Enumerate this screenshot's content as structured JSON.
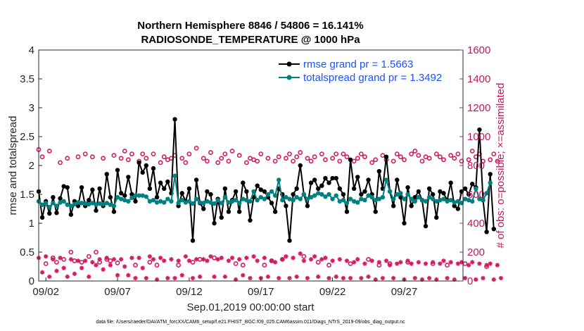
{
  "chart_data": {
    "type": "line",
    "title": "Northern Hemisphere 8846 / 54806 = 16.141%",
    "subtitle": "RADIOSONDE_TEMPERATURE @ 1000 hPa",
    "xlabel": "Sep.01,2019 00:00:00 start",
    "ylabel": "rmse and totalspread",
    "y2label": "# of obs: o=possible; ×=assimilated",
    "footer": "data file: /Users/raeder/DAI/ATM_forcXX/CAM6_setup/f.e21.FHIST_BGC.f09_025.CAM6assim.011/Diags_NTrS_2019-09/obs_diag_output.nc",
    "ylim": [
      0,
      4
    ],
    "y2lim": [
      0,
      1600
    ],
    "xlim": [
      1.5,
      31.1
    ],
    "yticks": [
      "0",
      "0.5",
      "1",
      "1.5",
      "2",
      "2.5",
      "3",
      "3.5",
      "4"
    ],
    "y2ticks": [
      "0",
      "200",
      "400",
      "600",
      "800",
      "1000",
      "1200",
      "1400",
      "1600"
    ],
    "xticks": [
      {
        "value": 2,
        "label": "09/02"
      },
      {
        "value": 7,
        "label": "09/07"
      },
      {
        "value": 12,
        "label": "09/12"
      },
      {
        "value": 17,
        "label": "09/17"
      },
      {
        "value": 22,
        "label": "09/22"
      },
      {
        "value": 27,
        "label": "09/27"
      }
    ],
    "legend_position": "top-right",
    "grid": false,
    "x_start": 1.5,
    "x_step": 0.25,
    "series": [
      {
        "name": "rmse grand pr = 1.5663",
        "color": "#000000",
        "marker": "filled-circle",
        "values": [
          1.55,
          1.1,
          1.38,
          1.17,
          1.45,
          1.18,
          1.43,
          1.64,
          1.62,
          1.15,
          1.38,
          1.3,
          1.62,
          1.3,
          1.4,
          1.58,
          1.22,
          1.6,
          1.3,
          1.85,
          1.45,
          1.2,
          1.92,
          1.52,
          1.48,
          1.8,
          1.5,
          1.38,
          2.05,
          1.88,
          2.0,
          1.6,
          1.95,
          1.45,
          1.7,
          1.6,
          1.72,
          1.52,
          2.8,
          1.3,
          1.52,
          1.38,
          1.6,
          0.7,
          1.75,
          1.35,
          1.25,
          1.55,
          1.5,
          1.0,
          1.42,
          1.1,
          1.6,
          1.2,
          1.4,
          1.55,
          1.2,
          1.7,
          1.55,
          1.05,
          1.45,
          1.65,
          1.58,
          1.55,
          1.45,
          1.35,
          1.2,
          1.6,
          1.5,
          1.3,
          0.7,
          1.5,
          1.6,
          2.0,
          1.5,
          1.3,
          1.7,
          1.75,
          1.6,
          1.65,
          1.78,
          1.7,
          1.78,
          1.78,
          1.6,
          1.5,
          1.2,
          2.1,
          1.6,
          1.8,
          1.5,
          1.55,
          1.75,
          1.5,
          1.2,
          1.9,
          1.6,
          2.15,
          1.55,
          1.3,
          1.75,
          1.45,
          1.0,
          1.62,
          1.3,
          1.45,
          1.55,
          1.4,
          0.95,
          1.6,
          1.5,
          1.1,
          1.55,
          1.52,
          1.4,
          1.7,
          1.3,
          1.25,
          1.55,
          1.6,
          1.5,
          1.68,
          1.62,
          2.62,
          1.4,
          0.85,
          1.85,
          0.9
        ]
      },
      {
        "name": "totalspread grand pr = 1.3492",
        "color": "#008080",
        "marker": "filled-circle",
        "values": [
          1.38,
          1.32,
          1.35,
          1.28,
          1.35,
          1.3,
          1.36,
          1.38,
          1.32,
          1.3,
          1.33,
          1.36,
          1.35,
          1.34,
          1.33,
          1.35,
          1.32,
          1.34,
          1.33,
          1.35,
          1.32,
          1.3,
          1.45,
          1.42,
          1.4,
          1.38,
          1.44,
          1.48,
          1.48,
          1.48,
          1.46,
          1.38,
          1.4,
          1.36,
          1.38,
          1.36,
          1.42,
          1.38,
          1.82,
          1.35,
          1.4,
          1.36,
          1.38,
          1.34,
          1.42,
          1.36,
          1.35,
          1.38,
          1.36,
          1.34,
          1.4,
          1.35,
          1.45,
          1.36,
          1.38,
          1.4,
          1.35,
          1.42,
          1.4,
          1.38,
          1.55,
          1.4,
          1.45,
          1.42,
          1.5,
          1.55,
          1.48,
          1.75,
          1.4,
          1.45,
          1.42,
          1.4,
          1.45,
          1.42,
          1.5,
          1.42,
          1.45,
          1.48,
          1.52,
          1.5,
          1.46,
          1.5,
          1.42,
          1.48,
          1.38,
          1.4,
          1.35,
          1.42,
          1.38,
          1.36,
          1.42,
          1.4,
          1.48,
          1.45,
          1.4,
          1.42,
          1.45,
          1.75,
          1.55,
          1.42,
          1.5,
          1.52,
          1.42,
          1.5,
          1.42,
          1.38,
          1.45,
          1.4,
          1.38,
          1.45,
          1.42,
          1.38,
          1.4,
          1.42,
          1.38,
          1.4,
          1.36,
          1.38,
          1.35,
          1.42,
          1.4,
          1.38,
          1.6,
          1.42,
          1.4,
          1.52,
          1.7
        ]
      }
    ],
    "obs_possible": {
      "name": "possible",
      "color": "#cc1f5f",
      "marker": "open-circle",
      "values_y2": [
        910,
        860,
        120,
        900,
        160,
        130,
        820,
        150,
        850,
        200,
        140,
        860,
        130,
        880,
        170,
        860,
        200,
        130,
        850,
        150,
        140,
        870,
        125,
        850,
        900,
        840,
        880,
        110,
        830,
        880,
        850,
        130,
        880,
        110,
        820,
        860,
        840,
        850,
        870,
        110,
        850,
        820,
        880,
        130,
        920,
        150,
        850,
        830,
        890,
        160,
        820,
        850,
        880,
        830,
        900,
        120,
        870,
        110,
        820,
        850,
        840,
        830,
        880,
        110,
        850,
        140,
        830,
        860,
        150,
        850,
        880,
        830,
        860,
        890,
        170,
        850,
        830,
        860,
        130,
        880,
        840,
        110,
        850,
        880,
        830,
        880,
        860,
        120,
        830,
        850,
        880,
        860,
        150,
        820,
        840,
        110,
        870,
        840,
        120,
        830,
        880,
        860,
        840,
        130,
        880,
        900,
        870,
        830,
        860,
        850,
        120,
        880,
        860,
        840,
        110,
        870,
        850,
        880,
        830,
        120,
        840,
        900,
        860,
        880,
        830,
        100,
        840,
        880,
        830
      ]
    },
    "obs_assimilated": {
      "name": "assimilated",
      "color": "#cc1f5f",
      "marker": "asterisk",
      "values_y2": [
        160,
        60,
        170,
        30,
        150,
        70,
        160,
        90,
        30,
        150,
        50,
        140,
        90,
        140,
        30,
        130,
        110,
        150,
        80,
        160,
        110,
        150,
        40,
        150,
        100,
        40,
        160,
        20,
        160,
        90,
        20,
        170,
        150,
        10,
        160,
        140,
        20,
        150,
        20,
        140,
        40,
        170,
        140,
        20,
        150,
        30,
        150,
        140,
        170,
        30,
        150,
        160,
        30,
        140,
        160,
        10,
        150,
        40,
        160,
        20,
        170,
        140,
        20,
        160,
        30,
        140,
        130,
        20,
        150,
        170,
        20,
        160,
        30,
        190,
        140,
        20,
        150,
        170,
        30,
        150,
        160,
        20,
        140,
        30,
        150,
        20,
        140,
        20,
        130,
        150,
        20,
        120,
        30,
        140,
        10,
        130,
        20,
        140,
        110,
        20,
        120,
        130,
        10,
        140,
        120,
        20,
        130,
        10,
        120,
        20,
        130,
        10,
        120,
        140,
        20,
        130,
        10,
        120,
        130,
        20,
        110,
        130,
        10,
        120,
        20,
        110,
        120,
        10,
        110,
        20
      ]
    }
  }
}
